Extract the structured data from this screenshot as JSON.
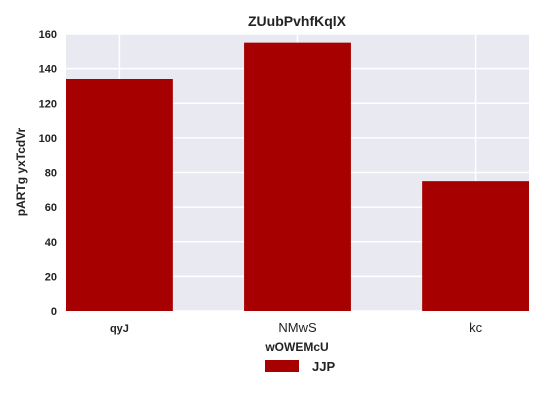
{
  "chart_data": {
    "type": "bar",
    "title": "ZUubPvhfKqlX",
    "xlabel": "wOWEMcU",
    "ylabel": "pARTg yxTcdVr",
    "categories": [
      "qyJ",
      "NMwS",
      "kc"
    ],
    "series": [
      {
        "name": "JJP",
        "values": [
          134,
          155,
          75
        ],
        "color": "#a60000"
      }
    ],
    "ylim": [
      0,
      160
    ],
    "yticks": [
      0,
      20,
      40,
      60,
      80,
      100,
      120,
      140,
      160
    ],
    "grid": true,
    "legend_placement": "bottom-center",
    "background": "#e9e9f2"
  }
}
